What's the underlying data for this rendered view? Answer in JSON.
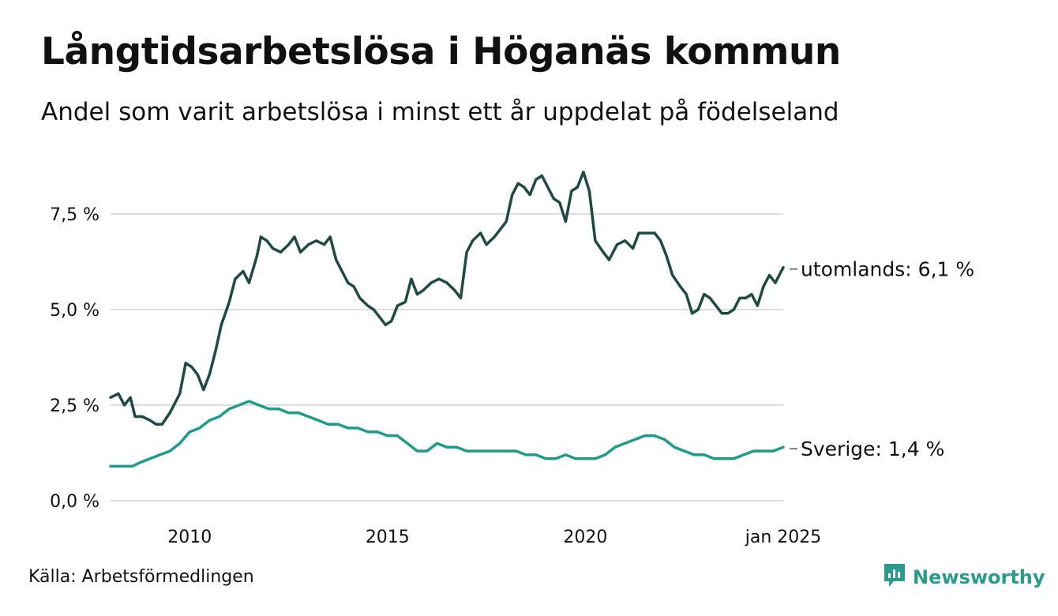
{
  "title": "Långtidsarbetslösa i Höganäs kommun",
  "subtitle": "Andel som varit arbetslösa i minst ett år uppdelat på födelseland",
  "source": "Källa: Arbetsförmedlingen",
  "brand": {
    "name": "Newsworthy",
    "icon": "newsworthy-logo-icon"
  },
  "colors": {
    "utomlands": "#1f4a42",
    "sverige": "#1f9b8a",
    "grid": "#dddddd"
  },
  "chart_data": {
    "type": "line",
    "title": "Långtidsarbetslösa i Höganäs kommun",
    "subtitle": "Andel som varit arbetslösa i minst ett år uppdelat på födelseland",
    "xlabel": "",
    "ylabel": "",
    "xlim": [
      2008.0,
      2025.0
    ],
    "ylim": [
      0,
      8.8
    ],
    "yticks": [
      0,
      2.5,
      5.0,
      7.5
    ],
    "ytick_labels": [
      "0,0 %",
      "2,5 %",
      "5,0 %",
      "7,5 %"
    ],
    "xticks": [
      2010,
      2015,
      2020,
      2025
    ],
    "xtick_labels": [
      "2010",
      "2015",
      "2020",
      "jan 2025"
    ],
    "grid": "horizontal",
    "legend": "end-labels",
    "series": [
      {
        "name": "utomlands",
        "end_label": "utomlands: 6,1 %",
        "points": [
          [
            2008.0,
            2.7
          ],
          [
            2008.2,
            2.8
          ],
          [
            2008.35,
            2.5
          ],
          [
            2008.5,
            2.7
          ],
          [
            2008.62,
            2.2
          ],
          [
            2008.8,
            2.2
          ],
          [
            2009.0,
            2.1
          ],
          [
            2009.15,
            2.0
          ],
          [
            2009.3,
            2.0
          ],
          [
            2009.5,
            2.3
          ],
          [
            2009.75,
            2.8
          ],
          [
            2009.9,
            3.6
          ],
          [
            2010.05,
            3.5
          ],
          [
            2010.2,
            3.3
          ],
          [
            2010.35,
            2.9
          ],
          [
            2010.5,
            3.3
          ],
          [
            2010.65,
            3.9
          ],
          [
            2010.8,
            4.6
          ],
          [
            2011.0,
            5.2
          ],
          [
            2011.15,
            5.8
          ],
          [
            2011.35,
            6.0
          ],
          [
            2011.5,
            5.7
          ],
          [
            2011.7,
            6.4
          ],
          [
            2011.8,
            6.9
          ],
          [
            2011.95,
            6.8
          ],
          [
            2012.1,
            6.6
          ],
          [
            2012.3,
            6.5
          ],
          [
            2012.5,
            6.7
          ],
          [
            2012.65,
            6.9
          ],
          [
            2012.8,
            6.5
          ],
          [
            2013.0,
            6.7
          ],
          [
            2013.2,
            6.8
          ],
          [
            2013.4,
            6.7
          ],
          [
            2013.55,
            6.9
          ],
          [
            2013.7,
            6.3
          ],
          [
            2013.85,
            6.0
          ],
          [
            2014.0,
            5.7
          ],
          [
            2014.15,
            5.6
          ],
          [
            2014.3,
            5.3
          ],
          [
            2014.5,
            5.1
          ],
          [
            2014.65,
            5.0
          ],
          [
            2014.8,
            4.8
          ],
          [
            2014.95,
            4.6
          ],
          [
            2015.1,
            4.7
          ],
          [
            2015.25,
            5.1
          ],
          [
            2015.45,
            5.2
          ],
          [
            2015.6,
            5.8
          ],
          [
            2015.75,
            5.4
          ],
          [
            2015.9,
            5.5
          ],
          [
            2016.1,
            5.7
          ],
          [
            2016.3,
            5.8
          ],
          [
            2016.5,
            5.7
          ],
          [
            2016.7,
            5.5
          ],
          [
            2016.85,
            5.3
          ],
          [
            2017.0,
            6.5
          ],
          [
            2017.15,
            6.8
          ],
          [
            2017.35,
            7.0
          ],
          [
            2017.5,
            6.7
          ],
          [
            2017.7,
            6.9
          ],
          [
            2017.85,
            7.1
          ],
          [
            2018.0,
            7.3
          ],
          [
            2018.15,
            8.0
          ],
          [
            2018.3,
            8.3
          ],
          [
            2018.45,
            8.2
          ],
          [
            2018.6,
            8.0
          ],
          [
            2018.75,
            8.4
          ],
          [
            2018.9,
            8.5
          ],
          [
            2019.05,
            8.2
          ],
          [
            2019.2,
            7.9
          ],
          [
            2019.35,
            7.8
          ],
          [
            2019.5,
            7.3
          ],
          [
            2019.65,
            8.1
          ],
          [
            2019.8,
            8.2
          ],
          [
            2019.95,
            8.6
          ],
          [
            2020.1,
            8.1
          ],
          [
            2020.25,
            6.8
          ],
          [
            2020.45,
            6.5
          ],
          [
            2020.6,
            6.3
          ],
          [
            2020.8,
            6.7
          ],
          [
            2021.0,
            6.8
          ],
          [
            2021.2,
            6.6
          ],
          [
            2021.35,
            7.0
          ],
          [
            2021.55,
            7.0
          ],
          [
            2021.75,
            7.0
          ],
          [
            2021.9,
            6.8
          ],
          [
            2022.05,
            6.4
          ],
          [
            2022.2,
            5.9
          ],
          [
            2022.4,
            5.6
          ],
          [
            2022.55,
            5.4
          ],
          [
            2022.7,
            4.9
          ],
          [
            2022.85,
            5.0
          ],
          [
            2023.0,
            5.4
          ],
          [
            2023.15,
            5.3
          ],
          [
            2023.3,
            5.1
          ],
          [
            2023.45,
            4.9
          ],
          [
            2023.6,
            4.9
          ],
          [
            2023.75,
            5.0
          ],
          [
            2023.9,
            5.3
          ],
          [
            2024.05,
            5.3
          ],
          [
            2024.2,
            5.4
          ],
          [
            2024.35,
            5.1
          ],
          [
            2024.5,
            5.6
          ],
          [
            2024.65,
            5.9
          ],
          [
            2024.8,
            5.7
          ],
          [
            2025.0,
            6.1
          ]
        ]
      },
      {
        "name": "Sverige",
        "end_label": "Sverige: 1,4 %",
        "points": [
          [
            2008.0,
            0.9
          ],
          [
            2008.2,
            0.9
          ],
          [
            2008.4,
            0.9
          ],
          [
            2008.55,
            0.9
          ],
          [
            2008.75,
            1.0
          ],
          [
            2009.0,
            1.1
          ],
          [
            2009.25,
            1.2
          ],
          [
            2009.5,
            1.3
          ],
          [
            2009.75,
            1.5
          ],
          [
            2010.0,
            1.8
          ],
          [
            2010.25,
            1.9
          ],
          [
            2010.5,
            2.1
          ],
          [
            2010.75,
            2.2
          ],
          [
            2011.0,
            2.4
          ],
          [
            2011.25,
            2.5
          ],
          [
            2011.5,
            2.6
          ],
          [
            2011.75,
            2.5
          ],
          [
            2012.0,
            2.4
          ],
          [
            2012.25,
            2.4
          ],
          [
            2012.5,
            2.3
          ],
          [
            2012.75,
            2.3
          ],
          [
            2013.0,
            2.2
          ],
          [
            2013.25,
            2.1
          ],
          [
            2013.5,
            2.0
          ],
          [
            2013.75,
            2.0
          ],
          [
            2014.0,
            1.9
          ],
          [
            2014.25,
            1.9
          ],
          [
            2014.5,
            1.8
          ],
          [
            2014.75,
            1.8
          ],
          [
            2015.0,
            1.7
          ],
          [
            2015.25,
            1.7
          ],
          [
            2015.5,
            1.5
          ],
          [
            2015.75,
            1.3
          ],
          [
            2016.0,
            1.3
          ],
          [
            2016.25,
            1.5
          ],
          [
            2016.5,
            1.4
          ],
          [
            2016.75,
            1.4
          ],
          [
            2017.0,
            1.3
          ],
          [
            2017.25,
            1.3
          ],
          [
            2017.5,
            1.3
          ],
          [
            2017.75,
            1.3
          ],
          [
            2018.0,
            1.3
          ],
          [
            2018.25,
            1.3
          ],
          [
            2018.5,
            1.2
          ],
          [
            2018.75,
            1.2
          ],
          [
            2019.0,
            1.1
          ],
          [
            2019.25,
            1.1
          ],
          [
            2019.5,
            1.2
          ],
          [
            2019.75,
            1.1
          ],
          [
            2020.0,
            1.1
          ],
          [
            2020.25,
            1.1
          ],
          [
            2020.5,
            1.2
          ],
          [
            2020.75,
            1.4
          ],
          [
            2021.0,
            1.5
          ],
          [
            2021.25,
            1.6
          ],
          [
            2021.5,
            1.7
          ],
          [
            2021.75,
            1.7
          ],
          [
            2022.0,
            1.6
          ],
          [
            2022.25,
            1.4
          ],
          [
            2022.5,
            1.3
          ],
          [
            2022.75,
            1.2
          ],
          [
            2023.0,
            1.2
          ],
          [
            2023.25,
            1.1
          ],
          [
            2023.5,
            1.1
          ],
          [
            2023.75,
            1.1
          ],
          [
            2024.0,
            1.2
          ],
          [
            2024.25,
            1.3
          ],
          [
            2024.5,
            1.3
          ],
          [
            2024.75,
            1.3
          ],
          [
            2025.0,
            1.4
          ]
        ]
      }
    ]
  }
}
